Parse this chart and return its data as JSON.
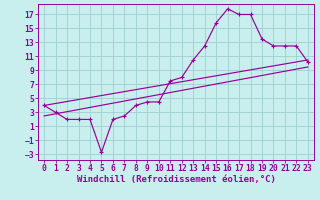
{
  "xlabel": "Windchill (Refroidissement éolien,°C)",
  "bg_color": "#c8eeee",
  "grid_color": "#a0d0d0",
  "line_color": "#990099",
  "xlim": [
    -0.5,
    23.5
  ],
  "ylim": [
    -3.8,
    18.5
  ],
  "xticks": [
    0,
    1,
    2,
    3,
    4,
    5,
    6,
    7,
    8,
    9,
    10,
    11,
    12,
    13,
    14,
    15,
    16,
    17,
    18,
    19,
    20,
    21,
    22,
    23
  ],
  "yticks": [
    -3,
    -1,
    1,
    3,
    5,
    7,
    9,
    11,
    13,
    15,
    17
  ],
  "curve1_x": [
    0,
    1,
    2,
    3,
    4,
    5,
    6,
    7,
    8,
    9,
    10,
    11,
    12,
    13,
    14,
    15,
    16,
    17,
    18,
    19,
    20,
    21,
    22,
    23
  ],
  "curve1_y": [
    4.0,
    3.0,
    2.0,
    2.0,
    2.0,
    -2.7,
    2.0,
    2.5,
    4.0,
    4.5,
    4.5,
    7.5,
    8.0,
    10.5,
    12.5,
    15.8,
    17.8,
    17.0,
    17.0,
    13.5,
    12.5,
    12.5,
    12.5,
    10.2
  ],
  "line1_x": [
    0,
    23
  ],
  "line1_y": [
    2.5,
    9.5
  ],
  "line2_x": [
    0,
    23
  ],
  "line2_y": [
    4.0,
    10.5
  ],
  "font_size_label": 6.5,
  "font_size_tick": 5.8
}
